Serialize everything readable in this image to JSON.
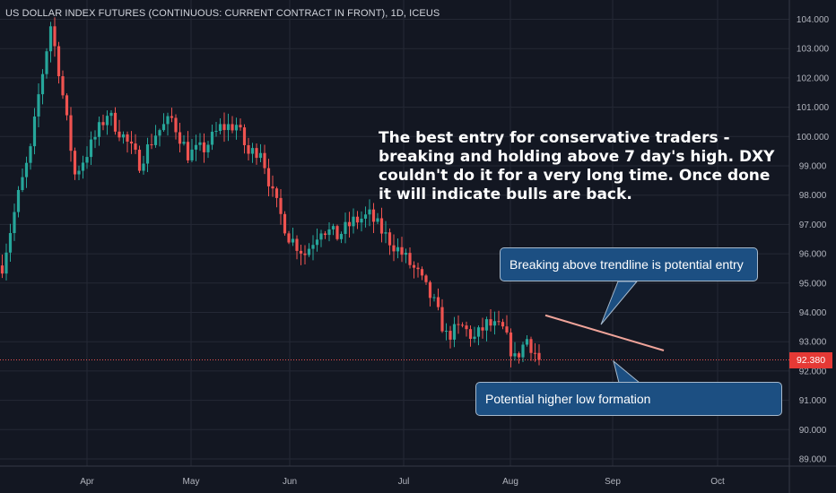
{
  "chart_data": {
    "type": "candlestick",
    "title": "US DOLLAR INDEX FUTURES (CONTINUOUS: CURRENT CONTRACT IN FRONT), 1D, ICEUS",
    "ylim": [
      88.6,
      104.3
    ],
    "y_ticks": [
      "104.000",
      "103.000",
      "102.000",
      "101.000",
      "100.000",
      "99.000",
      "98.000",
      "97.000",
      "96.000",
      "95.000",
      "94.000",
      "93.000",
      "92.000",
      "91.000",
      "90.000",
      "89.000"
    ],
    "x_ticks": [
      "Apr",
      "May",
      "Jun",
      "Jul",
      "Aug",
      "Sep",
      "Oct"
    ],
    "last_price": "92.380",
    "colors": {
      "up": "#26a69a",
      "down": "#ef5350",
      "background": "#131722",
      "trendline": "#f0a49a"
    },
    "anchors": [
      {
        "d": 0,
        "v": 95.6
      },
      {
        "d": 4,
        "v": 98.0
      },
      {
        "d": 7,
        "v": 99.5
      },
      {
        "d": 9,
        "v": 101.4
      },
      {
        "d": 12,
        "v": 103.8
      },
      {
        "d": 14,
        "v": 102.3
      },
      {
        "d": 16,
        "v": 100.5
      },
      {
        "d": 18,
        "v": 98.7
      },
      {
        "d": 22,
        "v": 99.7
      },
      {
        "d": 26,
        "v": 100.8
      },
      {
        "d": 30,
        "v": 100.0
      },
      {
        "d": 34,
        "v": 99.1
      },
      {
        "d": 38,
        "v": 100.1
      },
      {
        "d": 42,
        "v": 100.6
      },
      {
        "d": 46,
        "v": 99.4
      },
      {
        "d": 50,
        "v": 99.6
      },
      {
        "d": 54,
        "v": 100.3
      },
      {
        "d": 58,
        "v": 100.4
      },
      {
        "d": 61,
        "v": 99.4
      },
      {
        "d": 64,
        "v": 99.6
      },
      {
        "d": 67,
        "v": 98.0
      },
      {
        "d": 71,
        "v": 96.6
      },
      {
        "d": 75,
        "v": 96.0
      },
      {
        "d": 79,
        "v": 96.9
      },
      {
        "d": 83,
        "v": 96.6
      },
      {
        "d": 87,
        "v": 97.1
      },
      {
        "d": 91,
        "v": 97.3
      },
      {
        "d": 95,
        "v": 96.6
      },
      {
        "d": 99,
        "v": 96.0
      },
      {
        "d": 103,
        "v": 95.3
      },
      {
        "d": 107,
        "v": 94.3
      },
      {
        "d": 110,
        "v": 93.2
      },
      {
        "d": 114,
        "v": 93.5
      },
      {
        "d": 117,
        "v": 93.1
      },
      {
        "d": 120,
        "v": 93.6
      },
      {
        "d": 124,
        "v": 93.4
      },
      {
        "d": 127,
        "v": 92.4
      },
      {
        "d": 130,
        "v": 93.1
      },
      {
        "d": 133,
        "v": 92.4
      }
    ],
    "trendline": {
      "start": {
        "d": 122,
        "v": 93.9
      },
      "end": {
        "d": 150,
        "v": 92.7
      }
    },
    "projection_line": {
      "start": {
        "d": 134.5,
        "v": 92.2
      },
      "end": {
        "d": 134.5,
        "v": 92.2
      }
    },
    "note": "The best entry for conservative traders - breaking and holding above 7 day's high. DXY couldn't do it for a very long time. Once done it will indicate bulls are back.",
    "callouts": [
      {
        "text": "Breaking above trendline is potential entry"
      },
      {
        "text": "Potential higher low formation"
      }
    ]
  }
}
